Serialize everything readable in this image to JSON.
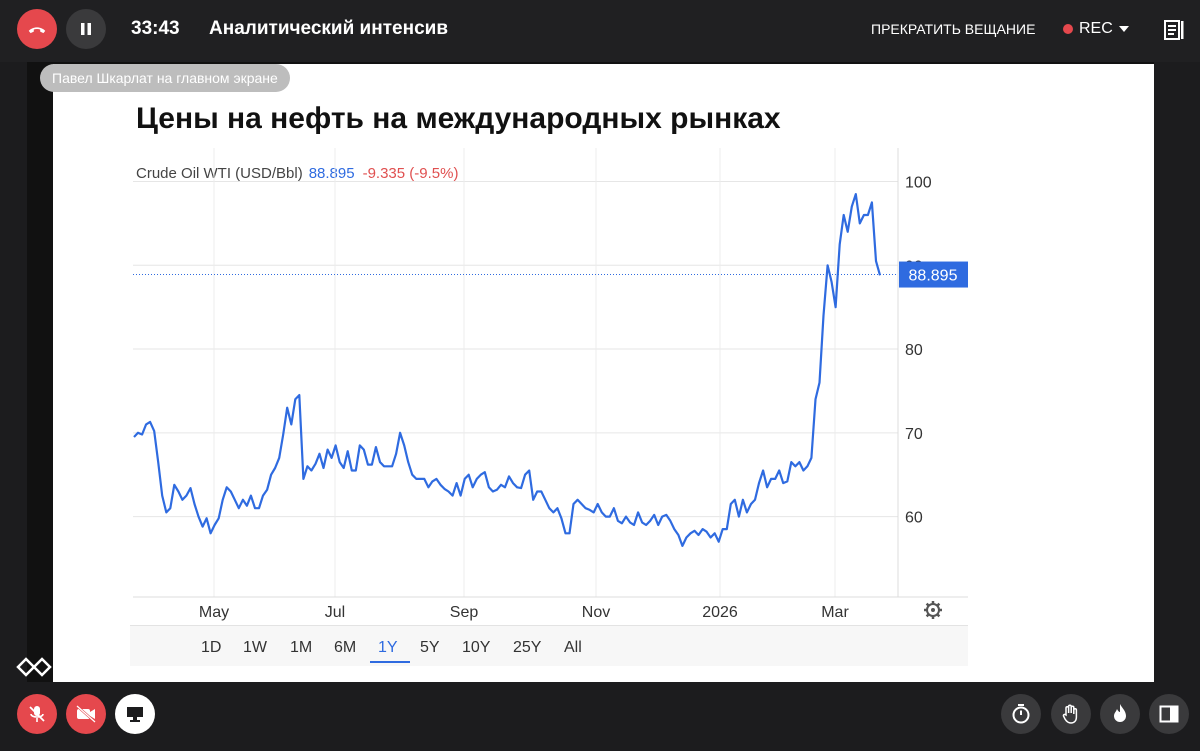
{
  "topbar": {
    "timer": "33:43",
    "title": "Аналитический интенсив",
    "stop_broadcast_label": "ПРЕКРАТИТЬ ВЕЩАНИЕ",
    "rec_label": "REC"
  },
  "presenter_label": "Павел Шкарлат на главном экране",
  "slide": {
    "title": "Цены на нефть на международных рынках",
    "instrument": "Crude Oil WTI (USD/Bbl)",
    "last_value": "88.895",
    "change": "-9.335 (-9.5%)"
  },
  "range_options": [
    "1D",
    "1W",
    "1M",
    "6M",
    "1Y",
    "5Y",
    "10Y",
    "25Y",
    "All"
  ],
  "active_range": "1Y",
  "colors": {
    "line": "#2f6be0",
    "negative": "#e05050",
    "accent_red": "#e5484d"
  },
  "chart_data": {
    "type": "line",
    "title": "",
    "xlabel": "",
    "ylabel": "",
    "x_ticks": [
      "May",
      "Jul",
      "Sep",
      "Nov",
      "2026",
      "Mar"
    ],
    "y_ticks": [
      60,
      70,
      80,
      90,
      100
    ],
    "ylim": [
      50.4,
      104
    ],
    "last_value_label": "88.895",
    "grid": true,
    "series": [
      {
        "values": [
          69.5,
          70.0,
          69.8,
          71.0,
          71.3,
          70.2,
          66.5,
          62.5,
          60.5,
          61.0,
          63.8,
          63.0,
          62.0,
          62.5,
          63.4,
          61.5,
          60.0,
          58.8,
          59.8,
          58.0,
          59.0,
          59.8,
          62.0,
          63.5,
          63.0,
          62.0,
          61.0,
          62.0,
          61.3,
          62.5,
          61.0,
          61.0,
          62.5,
          63.2,
          65.0,
          65.8,
          67.0,
          69.8,
          73.0,
          71.0,
          74.0,
          74.5,
          64.5,
          66.0,
          65.5,
          66.3,
          67.5,
          65.8,
          68.0,
          67.0,
          68.5,
          66.5,
          65.8,
          67.8,
          65.5,
          65.5,
          68.5,
          68.0,
          66.2,
          66.2,
          68.3,
          66.5,
          66.0,
          66.0,
          66.0,
          67.5,
          70.0,
          68.5,
          66.5,
          65.0,
          64.5,
          64.5,
          64.5,
          63.5,
          64.2,
          64.5,
          63.8,
          63.3,
          63.0,
          62.5,
          64.0,
          62.5,
          64.5,
          65.0,
          63.5,
          64.5,
          65.0,
          65.3,
          63.5,
          63.0,
          63.2,
          63.8,
          63.5,
          64.8,
          64.0,
          63.5,
          63.4,
          65.0,
          65.5,
          62.0,
          63.0,
          63.0,
          62.0,
          61.0,
          60.5,
          61.0,
          59.8,
          58.0,
          58.0,
          61.5,
          62.0,
          61.5,
          61.0,
          60.8,
          60.5,
          61.5,
          60.5,
          60.0,
          60.0,
          61.0,
          59.5,
          59.2,
          60.0,
          59.3,
          59.0,
          60.5,
          59.3,
          59.0,
          59.5,
          60.2,
          59.0,
          60.0,
          60.2,
          59.5,
          58.5,
          57.8,
          56.5,
          57.5,
          58.0,
          58.3,
          57.8,
          58.5,
          58.2,
          57.5,
          58.0,
          57.0,
          58.5,
          58.5,
          61.5,
          62.0,
          60.0,
          62.0,
          60.5,
          61.5,
          62.0,
          64.0,
          65.5,
          63.5,
          64.5,
          64.5,
          65.5,
          64.0,
          64.2,
          66.5,
          66.0,
          66.5,
          65.5,
          66.0,
          67.0,
          74.0,
          76.0,
          84.0,
          90.0,
          88.0,
          85.0,
          92.5,
          96.0,
          94.0,
          97.0,
          98.5,
          95.0,
          96.0,
          96.0,
          97.5,
          90.5,
          88.8
        ]
      }
    ]
  }
}
